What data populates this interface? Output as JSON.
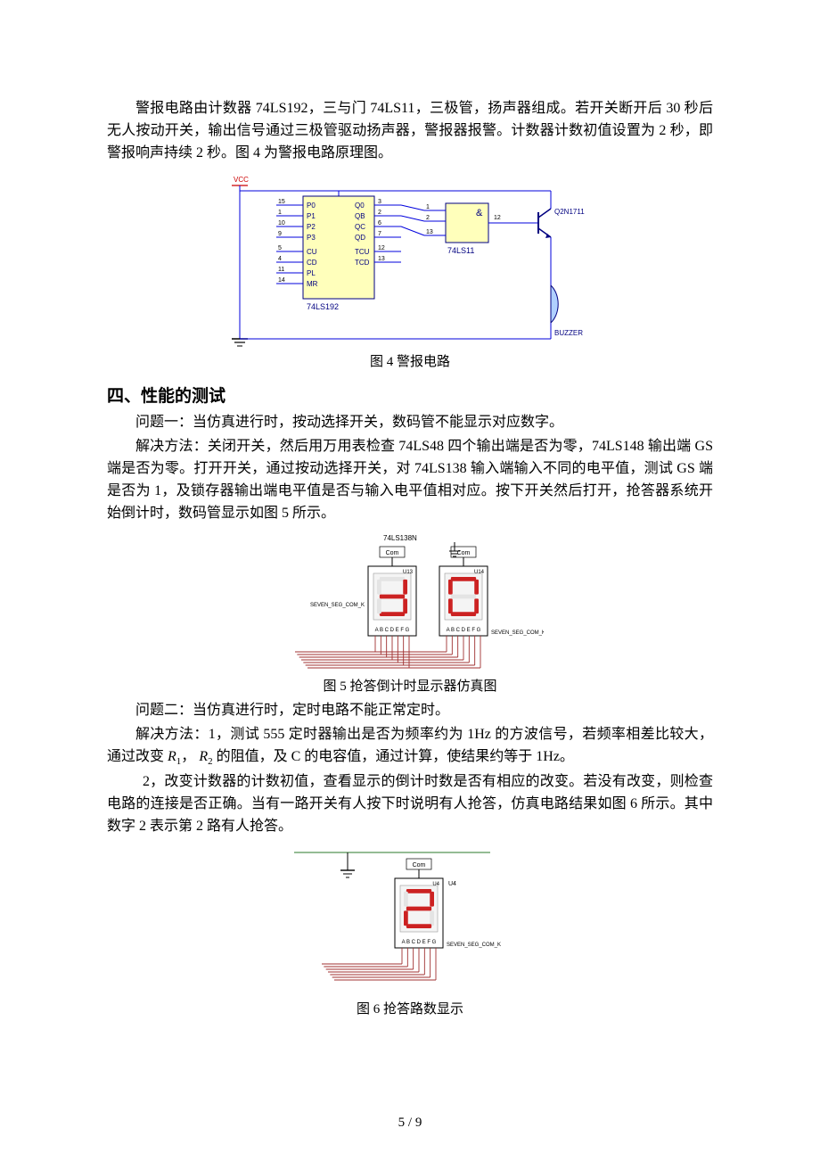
{
  "para1": "警报电路由计数器 74LS192，三与门 74LS11，三极管，扬声器组成。若开关断开后 30 秒后无人按动开关，输出信号通过三极管驱动扬声器，警报器报警。计数器计数初值设置为 2 秒，即警报响声持续 2 秒。图 4 为警报电路原理图。",
  "figure4": {
    "caption": "图 4 警报电路",
    "vcc_label": "VCC",
    "chip1": {
      "name": "74LS192",
      "left_pins": [
        {
          "num": "15",
          "label": "P0"
        },
        {
          "num": "1",
          "label": "P1"
        },
        {
          "num": "10",
          "label": "P2"
        },
        {
          "num": "9",
          "label": "P3"
        },
        {
          "num": "5",
          "label": "CU"
        },
        {
          "num": "4",
          "label": "CD"
        },
        {
          "num": "11",
          "label": "PL"
        },
        {
          "num": "14",
          "label": "MR"
        }
      ],
      "right_pins": [
        {
          "num": "3",
          "label": "Q0"
        },
        {
          "num": "2",
          "label": "QB"
        },
        {
          "num": "6",
          "label": "QC"
        },
        {
          "num": "7",
          "label": "QD"
        },
        {
          "num": "12",
          "label": "TCU"
        },
        {
          "num": "13",
          "label": "TCD"
        }
      ]
    },
    "chip2": {
      "name": "74LS11",
      "symbol": "&",
      "in_pins": [
        "1",
        "2",
        "13"
      ],
      "out_pin": "12"
    },
    "transistor": "Q2N1711",
    "speaker": "BUZZER",
    "colors": {
      "chip_fill": "#ffffbb",
      "wire": "#0000dd",
      "text": "#000080",
      "black": "#000000",
      "speaker_fill": "#b0d0ff"
    }
  },
  "heading4": "四、性能的测试",
  "q1_title": "问题一：当仿真进行时，按动选择开关，数码管不能显示对应数字。",
  "q1_body": "解决方法：关闭开关，然后用万用表检查 74LS48 四个输出端是否为零，74LS148 输出端 GS 端是否为零。打开开关，通过按动选择开关，对 74LS138 输入端输入不同的电平值，测试 GS 端是否为 1，及锁存器输出端电平值是否与输入电平值相对应。按下开关然后打开，抢答器系统开始倒计时，数码管显示如图 5 所示。",
  "figure5": {
    "caption": "图 5 抢答倒计时显示器仿真图",
    "top_label": "74LS138N",
    "left_ref": "U13",
    "right_ref": "U14",
    "com_label": "Com",
    "left_name": "SEVEN_SEG_COM_K",
    "right_name": "SEVEN_SEG_COM_K",
    "pins": "A B C D E F G",
    "segment_on": "#cc2222",
    "segment_off": "#e4e4e4",
    "wire_color": "#a03030",
    "text_color": "#000000",
    "left_digit_segments": {
      "a": 0,
      "b": 1,
      "c": 1,
      "d": 1,
      "e": 0,
      "f": 0,
      "g": 1
    },
    "right_digit_segments": {
      "a": 1,
      "b": 1,
      "c": 1,
      "d": 1,
      "e": 1,
      "f": 1,
      "g": 0
    }
  },
  "q2_title": "问题二：当仿真进行时，定时电路不能正常定时。",
  "q2_line1_a": "解决方法：1，测试 555 定时器输出是否为频率约为 1Hz 的方波信号，若频率相差比较大，通过改变",
  "q2_R1": "R",
  "q2_R1_sub": "1",
  "q2_sep": "，",
  "q2_R2": "R",
  "q2_R2_sub": "2",
  "q2_line1_b": "的阻值，及 C 的电容值，通过计算，使结果约等于 1Hz。",
  "q2_line2": "2，改变计数器的计数初值，查看显示的倒计时数是否有相应的改变。若没有改变，则检查电路的连接是否正确。当有一路开关有人按下时说明有人抢答，仿真电路结果如图 6 所示。其中数字 2 表示第 2 路有人抢答。",
  "figure6": {
    "caption": "图 6 抢答路数显示",
    "com_label": "Com",
    "ref": "U4",
    "name": "SEVEN_SEG_COM_K",
    "pins": "A B C D E F G",
    "segment_on": "#cc2222",
    "segment_off": "#e4e4e4",
    "wire_color": "#a03030",
    "text_color": "#000000",
    "digit_segments": {
      "a": 1,
      "b": 1,
      "c": 0,
      "d": 1,
      "e": 1,
      "f": 0,
      "g": 1
    }
  },
  "footer": "5 / 9"
}
